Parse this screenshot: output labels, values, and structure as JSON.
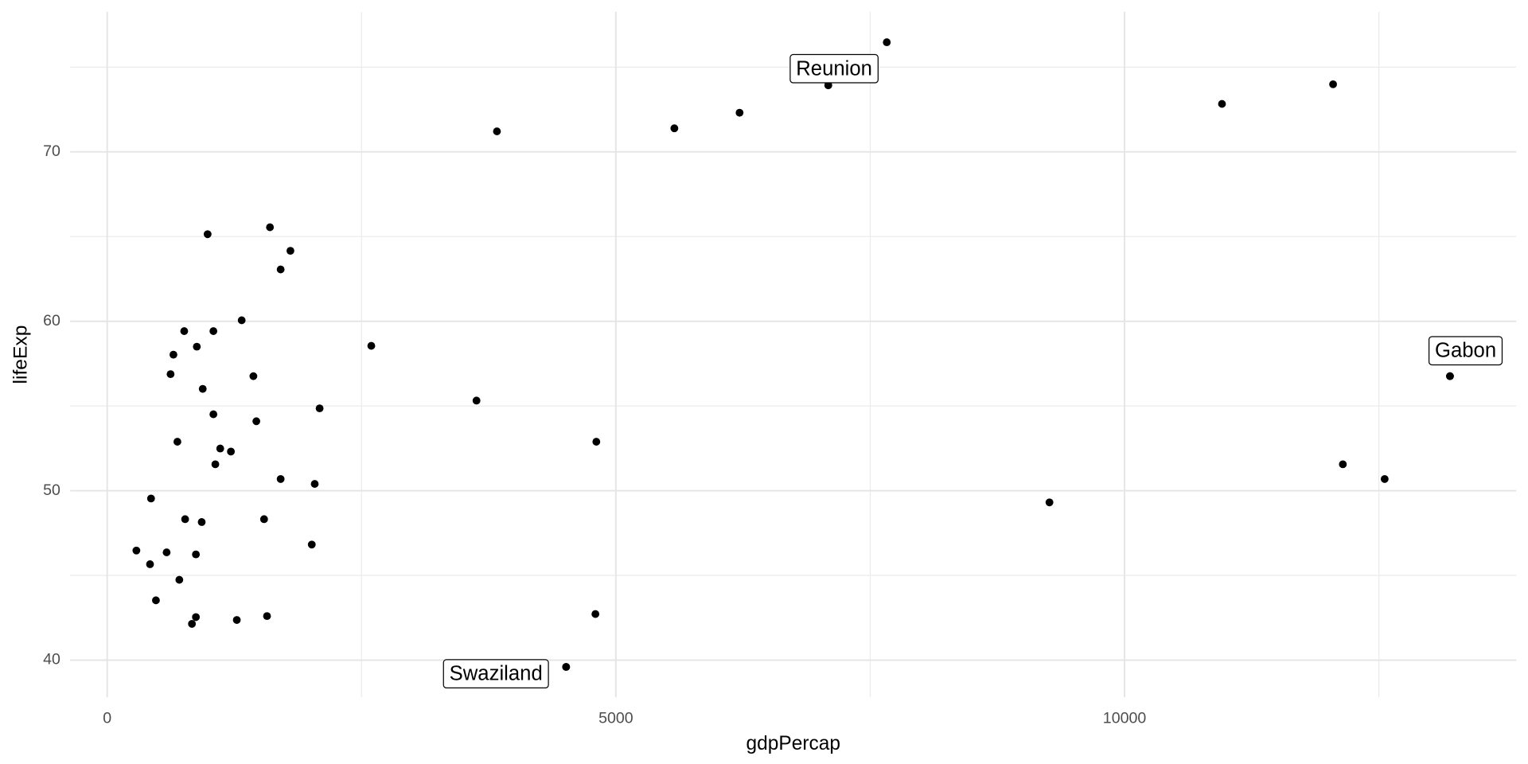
{
  "chart_data": {
    "type": "scatter",
    "x_label": "gdpPercap",
    "y_label": "lifeExp",
    "xlim": [
      -364,
      13851
    ],
    "ylim": [
      37.8,
      78.27
    ],
    "xticks": [
      0,
      5000,
      10000
    ],
    "yticks": [
      40,
      50,
      60,
      70
    ],
    "x_minor_ticks": [
      2500,
      7500,
      12500
    ],
    "y_minor_ticks": [
      45,
      55,
      65,
      75
    ],
    "grid": true,
    "color": "#000000",
    "x": [
      7663,
      7088,
      6216,
      5575,
      3831,
      10958,
      12050,
      13199,
      12146,
      12557,
      9262,
      4808,
      4799,
      4511,
      3630,
      2596,
      987,
      1600,
      1801,
      1705,
      1322,
      757,
      1044,
      651,
      881,
      623,
      1437,
      939,
      1044,
      2088,
      1466,
      690,
      1111,
      1216,
      1063,
      1705,
      2040,
      431,
      766,
      929,
      1542,
      2011,
      287,
      584,
      872,
      421,
      709,
      479,
      872,
      1571,
      833,
      1274
    ],
    "y": [
      76.47,
      73.93,
      72.31,
      71.39,
      71.21,
      72.83,
      73.99,
      56.76,
      51.56,
      50.69,
      49.31,
      52.89,
      42.72,
      39.6,
      55.32,
      58.55,
      65.14,
      65.55,
      64.16,
      63.06,
      60.06,
      59.42,
      59.42,
      58.03,
      58.5,
      56.88,
      56.76,
      56.01,
      54.51,
      54.86,
      54.1,
      52.89,
      52.49,
      52.31,
      51.56,
      50.69,
      50.4,
      49.54,
      48.32,
      48.15,
      48.32,
      46.82,
      46.47,
      46.36,
      46.24,
      45.66,
      44.74,
      43.53,
      42.54,
      42.6,
      42.14,
      42.37
    ],
    "annotations": [
      {
        "text": "Reunion",
        "x": 7088,
        "y": 73.93
      },
      {
        "text": "Gabon",
        "x": 13199,
        "y": 56.76
      },
      {
        "text": "Swaziland",
        "x": 4511,
        "y": 39.6
      }
    ]
  }
}
